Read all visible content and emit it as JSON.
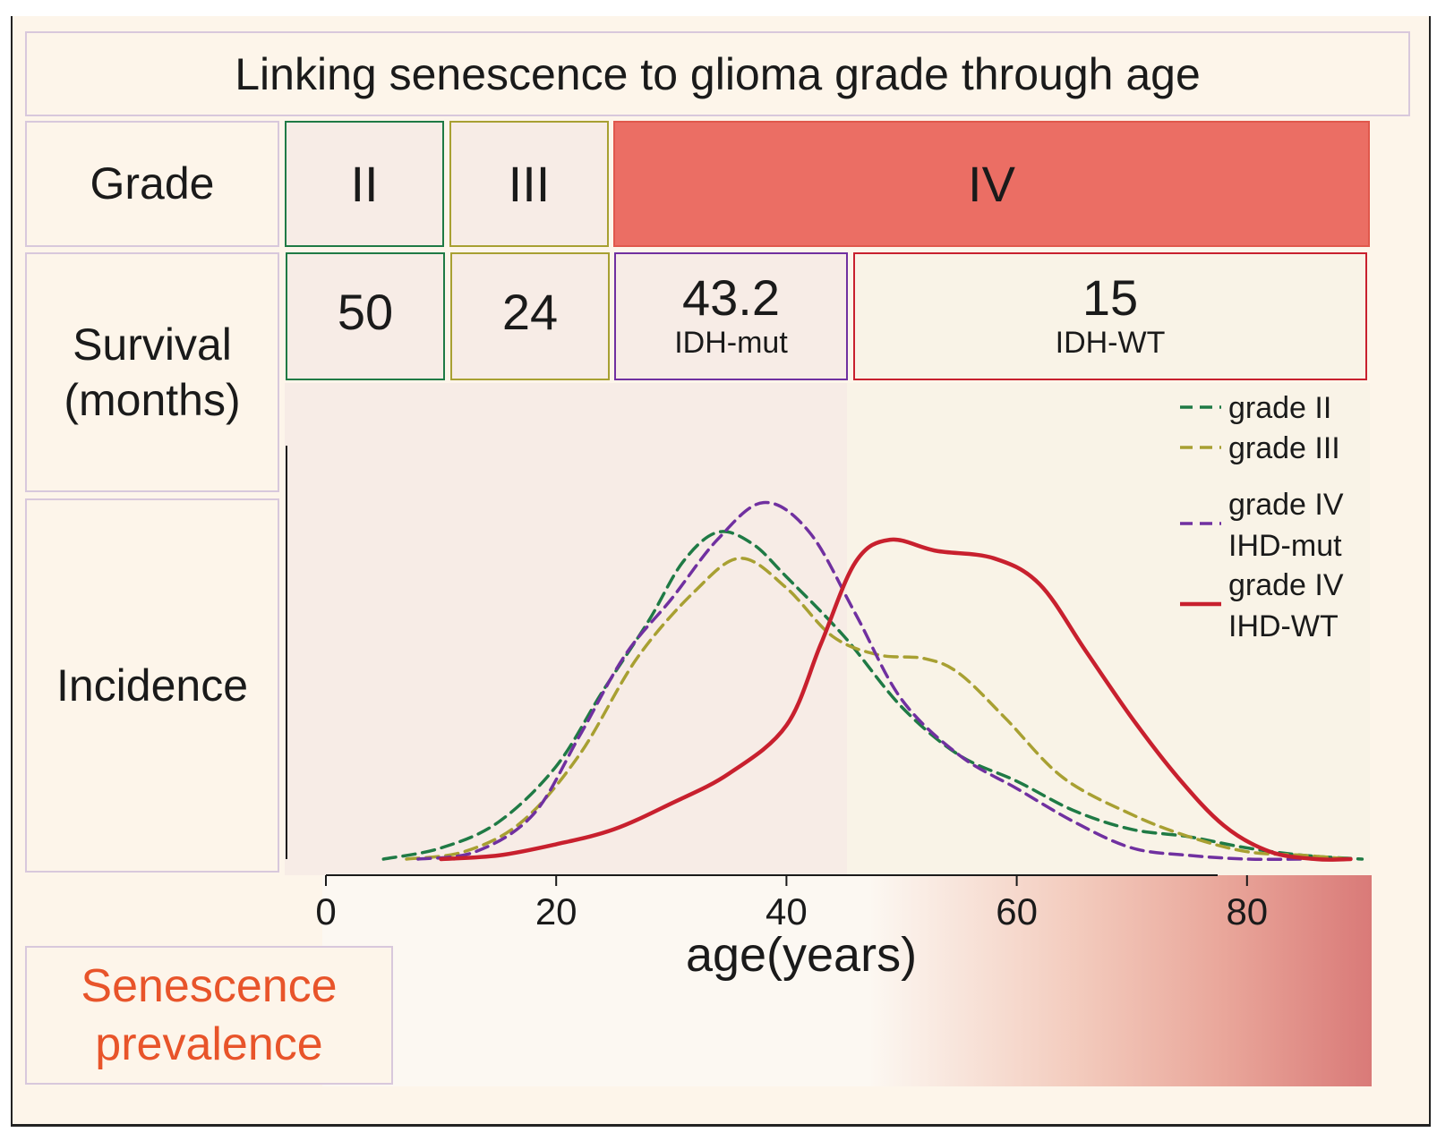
{
  "title": "Linking senescence to glioma grade through age",
  "rows": {
    "grade_label": "Grade",
    "survival_label_line1": "Survival",
    "survival_label_line2": "(months)",
    "incidence_label": "Incidence",
    "senescence_line1": "Senescence",
    "senescence_line2": "prevalence"
  },
  "grades": {
    "ii": "II",
    "iii": "III",
    "iv": "IV"
  },
  "survival": {
    "grade_ii": "50",
    "grade_iii": "24",
    "grade_iv_mut_value": "43.2",
    "grade_iv_mut_label": "IDH-mut",
    "grade_iv_wt_value": "15",
    "grade_iv_wt_label": "IDH-WT"
  },
  "colors": {
    "grade_ii": "#1f7a45",
    "grade_iii": "#a8a032",
    "grade_iv_mut": "#7030a0",
    "grade_iv_wt": "#c8202e",
    "grade_iv_fill": "#eb6e64",
    "senescence": "#e8542a"
  },
  "chart_data": {
    "type": "line",
    "title": "",
    "xlabel": "age(years)",
    "ylabel": "Incidence",
    "xlim": [
      0,
      90
    ],
    "x_ticks": [
      0,
      20,
      40,
      60,
      80
    ],
    "ylim": [
      0,
      1
    ],
    "legend_position": "top-right",
    "series": [
      {
        "name": "grade II",
        "style": "dashed",
        "color": "#1f7a45",
        "x": [
          5,
          10,
          15,
          20,
          24,
          28,
          31,
          34,
          37,
          40,
          45,
          50,
          55,
          60,
          65,
          70,
          75,
          80,
          85,
          90
        ],
        "y": [
          0.0,
          0.03,
          0.1,
          0.25,
          0.45,
          0.64,
          0.8,
          0.88,
          0.85,
          0.76,
          0.6,
          0.41,
          0.28,
          0.21,
          0.13,
          0.08,
          0.06,
          0.03,
          0.01,
          0.0
        ]
      },
      {
        "name": "grade III",
        "style": "dashed",
        "color": "#a8a032",
        "x": [
          7,
          12,
          17,
          22,
          27,
          32,
          36,
          40,
          44,
          48,
          52,
          55,
          59,
          64,
          70,
          75,
          80,
          85,
          89
        ],
        "y": [
          0.0,
          0.02,
          0.1,
          0.28,
          0.54,
          0.72,
          0.81,
          0.73,
          0.6,
          0.55,
          0.54,
          0.5,
          0.38,
          0.22,
          0.12,
          0.06,
          0.02,
          0.01,
          0.0
        ]
      },
      {
        "name": "grade IV IHD-mut",
        "style": "dashed",
        "color": "#7030a0",
        "x": [
          8,
          13,
          18,
          22,
          26,
          30,
          34,
          38,
          42,
          46,
          50,
          55,
          60,
          65,
          70,
          75,
          80,
          85
        ],
        "y": [
          0.0,
          0.02,
          0.12,
          0.33,
          0.55,
          0.7,
          0.86,
          0.96,
          0.88,
          0.66,
          0.43,
          0.28,
          0.19,
          0.1,
          0.03,
          0.01,
          0.0,
          0.0
        ]
      },
      {
        "name": "grade IV IHD-WT",
        "style": "solid",
        "color": "#c8202e",
        "x": [
          10,
          15,
          20,
          25,
          30,
          35,
          40,
          43,
          46,
          49,
          53,
          58,
          62,
          66,
          70,
          74,
          78,
          82,
          86,
          89
        ],
        "y": [
          0.0,
          0.01,
          0.04,
          0.08,
          0.15,
          0.23,
          0.36,
          0.58,
          0.8,
          0.86,
          0.83,
          0.81,
          0.74,
          0.56,
          0.38,
          0.22,
          0.09,
          0.02,
          0.0,
          0.0
        ]
      }
    ],
    "legend": [
      {
        "line1": "grade II",
        "line2": ""
      },
      {
        "line1": "grade III",
        "line2": ""
      },
      {
        "line1": "grade IV",
        "line2": "IHD-mut"
      },
      {
        "line1": "grade IV",
        "line2": "IHD-WT"
      }
    ]
  }
}
